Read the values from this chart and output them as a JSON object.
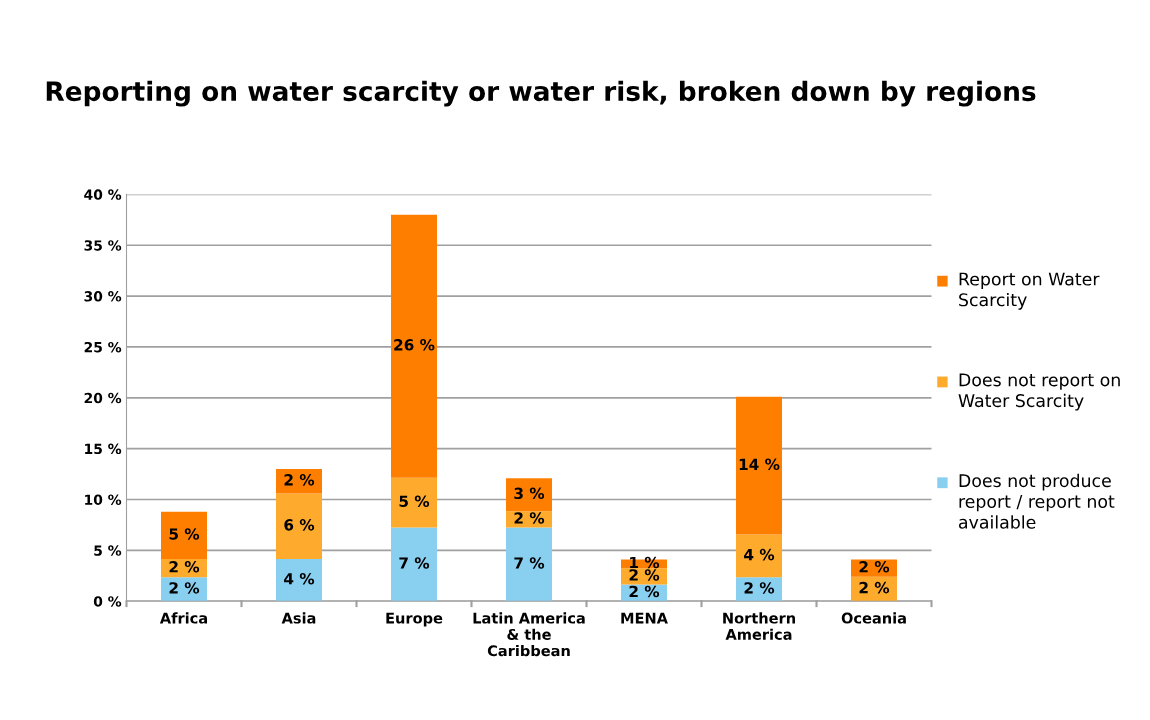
{
  "chart_data": {
    "type": "bar",
    "stacked": true,
    "title": "Reporting on water scarcity or water risk, broken down by regions",
    "categories": [
      "Africa",
      "Asia",
      "Europe",
      "Latin America\n& the\nCaribbean",
      "MENA",
      "Northern\nAmerica",
      "Oceania"
    ],
    "series": [
      {
        "name": "Does not produce report / report not available",
        "color": "#89cff0",
        "values": [
          2.35,
          4.15,
          7.25,
          7.25,
          1.65,
          2.35,
          0
        ],
        "value_labels": [
          "2 %",
          "4 %",
          "7 %",
          "7 %",
          "2 %",
          "2 %",
          null
        ]
      },
      {
        "name": "Does not report on Water Scarcity",
        "color": "#fdaa2d",
        "values": [
          1.8,
          6.45,
          4.9,
          1.6,
          1.6,
          4.2,
          2.4
        ],
        "value_labels": [
          "2 %",
          "6 %",
          "5 %",
          "2 %",
          "2 %",
          "4 %",
          "2 %"
        ]
      },
      {
        "name": "Report on Water Scarcity",
        "color": "#fe7f00",
        "values": [
          4.65,
          2.4,
          25.85,
          3.25,
          0.85,
          13.55,
          1.7
        ],
        "value_labels": [
          "5 %",
          "2 %",
          "26 %",
          "3 %",
          "1 %",
          "14 %",
          "2 %"
        ]
      }
    ],
    "ylim": [
      0,
      40
    ],
    "yticks": [
      {
        "value": 0,
        "label": "0 %"
      },
      {
        "value": 5,
        "label": "5 %"
      },
      {
        "value": 10,
        "label": "10 %"
      },
      {
        "value": 15,
        "label": "15 %"
      },
      {
        "value": 20,
        "label": "20 %"
      },
      {
        "value": 25,
        "label": "25 %"
      },
      {
        "value": 30,
        "label": "30 %"
      },
      {
        "value": 35,
        "label": "35 %"
      },
      {
        "value": 40,
        "label": "40 %"
      }
    ],
    "grid": "y",
    "legend": "right"
  }
}
